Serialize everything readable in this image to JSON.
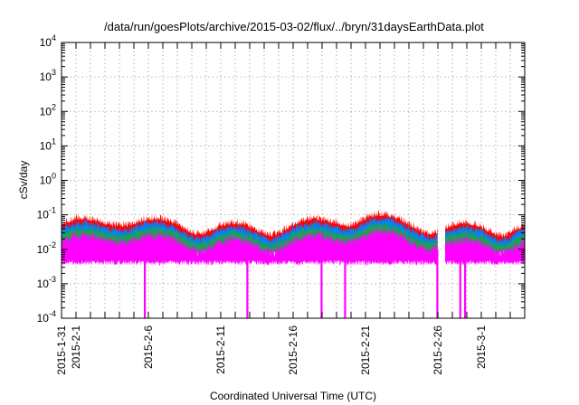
{
  "chart_data": {
    "type": "area",
    "title": "/data/run/goesPlots/archive/2015-03-02/flux/../bryn/31daysEarthData.plot",
    "xlabel": "Coordinated Universal Time (UTC)",
    "ylabel": "cSv/day",
    "yscale": "log",
    "ylim": [
      0.0001,
      10000
    ],
    "xlim": [
      "2015-01-31",
      "2015-03-04"
    ],
    "grid": true,
    "x_ticks": [
      "2015-1-31",
      "2015-2-1",
      "2015-2-6",
      "2015-2-11",
      "2015-2-16",
      "2015-2-21",
      "2015-2-26",
      "2015-3-1"
    ],
    "y_ticks": [
      {
        "value": 0.0001,
        "base": "10",
        "exp": "-4"
      },
      {
        "value": 0.001,
        "base": "10",
        "exp": "-3"
      },
      {
        "value": 0.01,
        "base": "10",
        "exp": "-2"
      },
      {
        "value": 0.1,
        "base": "10",
        "exp": "-1"
      },
      {
        "value": 1,
        "base": "10",
        "exp": "0"
      },
      {
        "value": 10,
        "base": "10",
        "exp": "1"
      },
      {
        "value": 100,
        "base": "10",
        "exp": "2"
      },
      {
        "value": 1000,
        "base": "10",
        "exp": "3"
      },
      {
        "value": 10000,
        "base": "10",
        "exp": "4"
      }
    ],
    "series": [
      {
        "color": "#ff0000",
        "typical_range": [
          0.05,
          0.1
        ]
      },
      {
        "color": "#0080ff",
        "typical_range": [
          0.03,
          0.07
        ]
      },
      {
        "color": "#20a050",
        "typical_range": [
          0.02,
          0.05
        ]
      },
      {
        "color": "#ff00ff",
        "typical_range": [
          0.004,
          0.03
        ]
      }
    ],
    "data_gaps": [
      [
        "2015-02-26",
        "2015-02-26T12:00"
      ]
    ],
    "dropouts": [
      "2015-02-05T18:00",
      "2015-02-12T20:00",
      "2015-02-17T23:00",
      "2015-02-19T14:00",
      "2015-02-25T23:00",
      "2015-02-27T13:00",
      "2015-02-27T21:00"
    ]
  }
}
